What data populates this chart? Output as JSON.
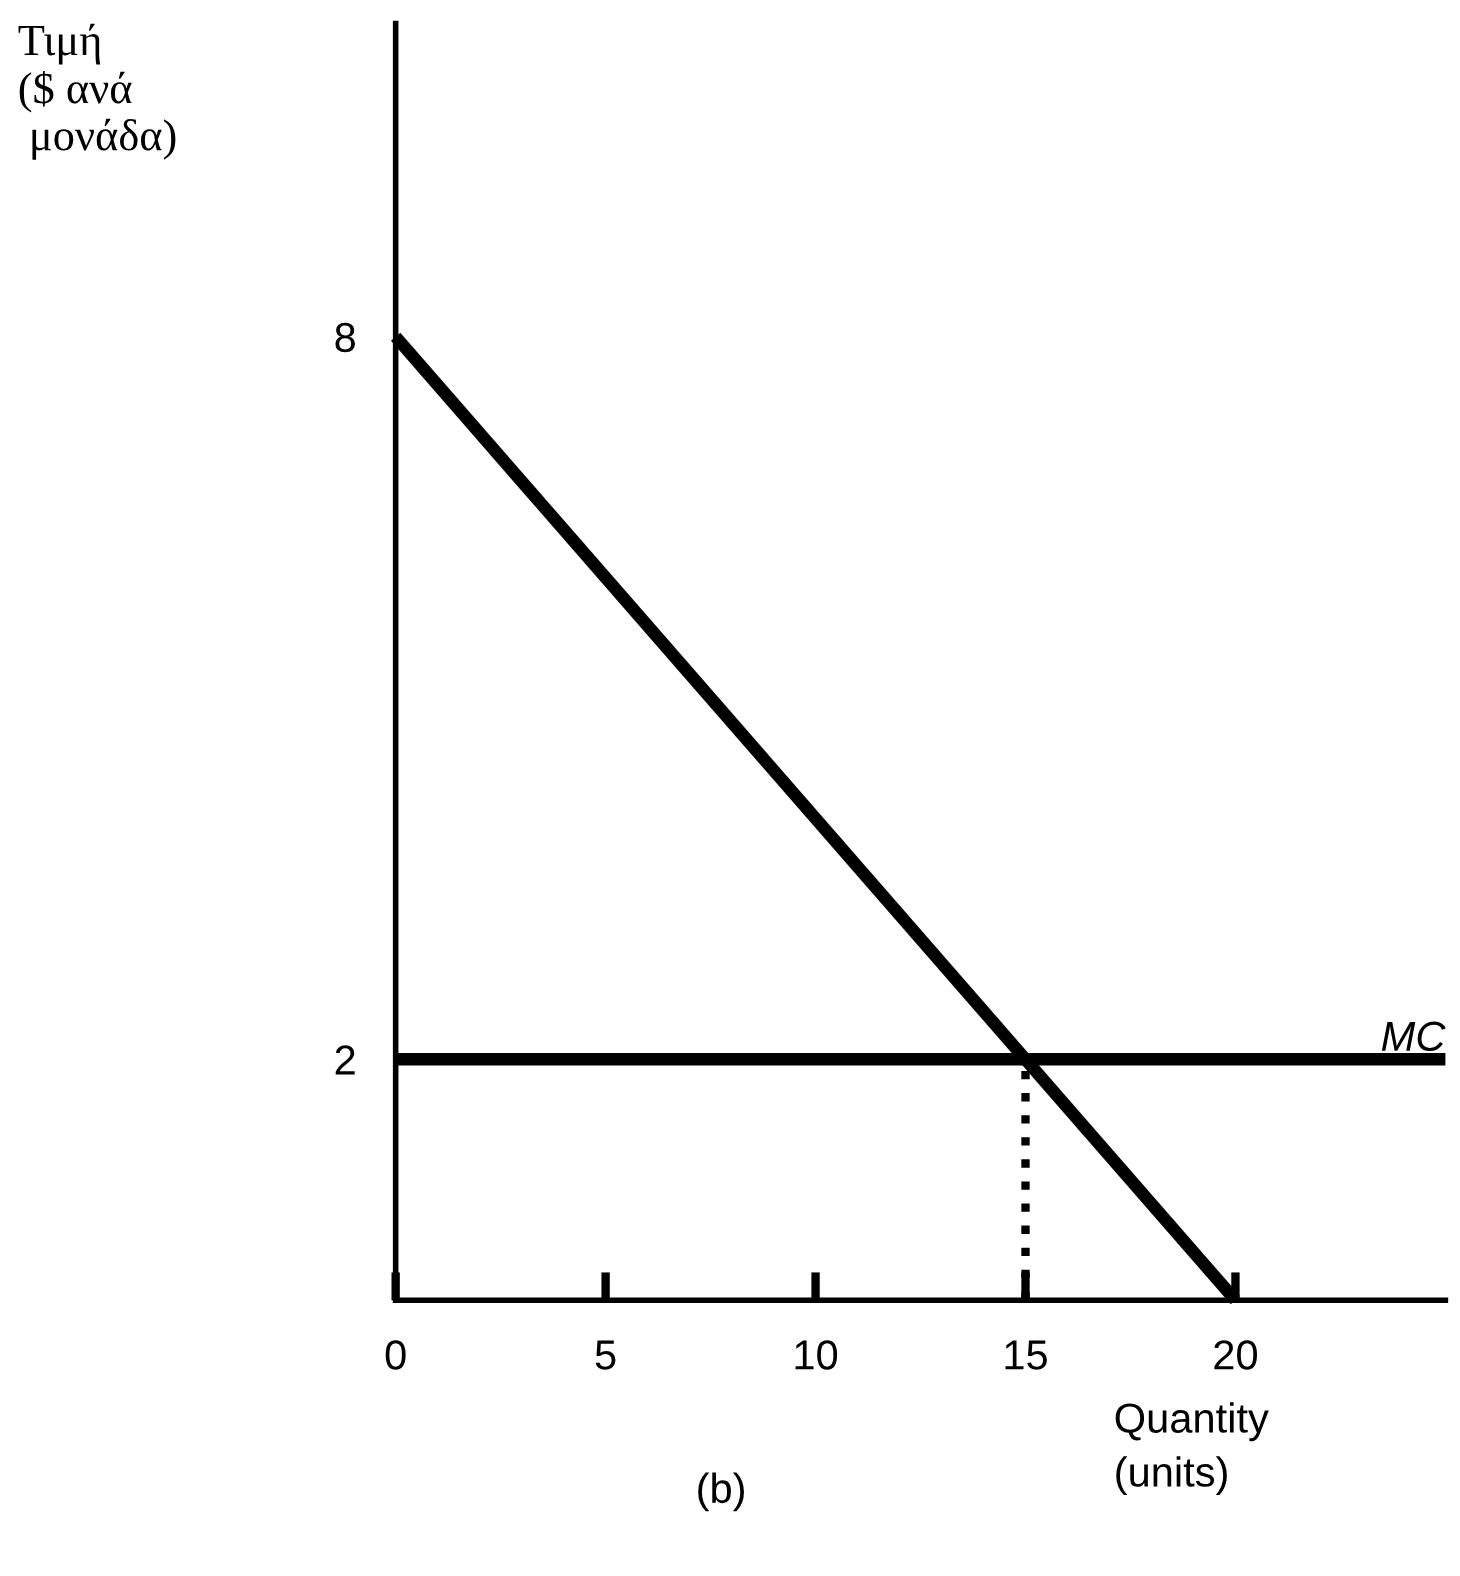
{
  "chart_data": {
    "type": "line",
    "ylabel": "Τιμή\n($ ανά\n μονάδα)",
    "xlabel": "Quantity\n(units)",
    "annotations": [
      "(b)"
    ],
    "series": [
      {
        "x": [
          0,
          20
        ],
        "values": [
          8,
          0
        ],
        "color": "#000000"
      },
      {
        "name": "MC",
        "x": [
          0,
          25
        ],
        "values": [
          2,
          2
        ],
        "color": "#000000"
      },
      {
        "x": [
          15,
          15
        ],
        "values": [
          0,
          2
        ],
        "color": "#000000",
        "line_style": "dotted"
      }
    ],
    "xlim": [
      0,
      25
    ],
    "xticks": [
      0,
      5,
      10,
      15,
      20
    ],
    "ylim": [
      0,
      10.6
    ],
    "yticks": [
      2,
      8
    ]
  }
}
